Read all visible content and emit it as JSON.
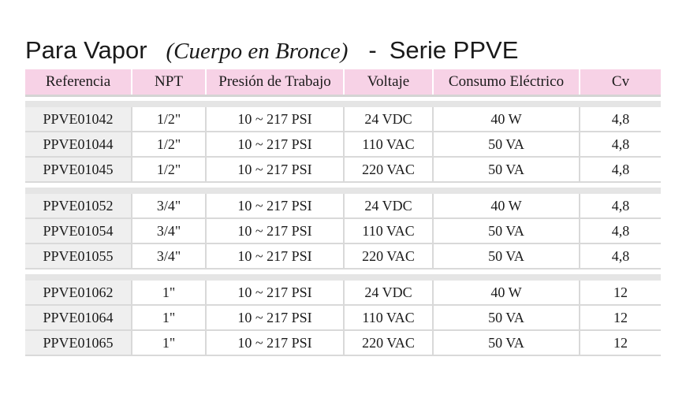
{
  "title": {
    "main": "Para Vapor",
    "sub": "(Cuerpo en Bronce)",
    "dash": "-",
    "series": "Serie PPVE"
  },
  "headers": {
    "referencia": "Referencia",
    "npt": "NPT",
    "presion": "Presión de Trabajo",
    "voltaje": "Voltaje",
    "consumo": "Consumo Eléctrico",
    "cv": "Cv"
  },
  "groups": [
    {
      "rows": [
        {
          "ref": "PPVE01042",
          "npt": "1/2\"",
          "presion": "10 ~ 217 PSI",
          "voltaje": "24 VDC",
          "consumo": "40 W",
          "cv": "4,8"
        },
        {
          "ref": "PPVE01044",
          "npt": "1/2\"",
          "presion": "10 ~ 217 PSI",
          "voltaje": "110 VAC",
          "consumo": "50 VA",
          "cv": "4,8"
        },
        {
          "ref": "PPVE01045",
          "npt": "1/2\"",
          "presion": "10 ~ 217 PSI",
          "voltaje": "220 VAC",
          "consumo": "50 VA",
          "cv": "4,8"
        }
      ]
    },
    {
      "rows": [
        {
          "ref": "PPVE01052",
          "npt": "3/4\"",
          "presion": "10 ~ 217 PSI",
          "voltaje": "24 VDC",
          "consumo": "40 W",
          "cv": "4,8"
        },
        {
          "ref": "PPVE01054",
          "npt": "3/4\"",
          "presion": "10 ~ 217 PSI",
          "voltaje": "110 VAC",
          "consumo": "50 VA",
          "cv": "4,8"
        },
        {
          "ref": "PPVE01055",
          "npt": "3/4\"",
          "presion": "10 ~ 217 PSI",
          "voltaje": "220 VAC",
          "consumo": "50 VA",
          "cv": "4,8"
        }
      ]
    },
    {
      "rows": [
        {
          "ref": "PPVE01062",
          "npt": "1\"",
          "presion": "10 ~ 217 PSI",
          "voltaje": "24 VDC",
          "consumo": "40 W",
          "cv": "12"
        },
        {
          "ref": "PPVE01064",
          "npt": "1\"",
          "presion": "10 ~ 217 PSI",
          "voltaje": "110 VAC",
          "consumo": "50 VA",
          "cv": "12"
        },
        {
          "ref": "PPVE01065",
          "npt": "1\"",
          "presion": "10 ~ 217 PSI",
          "voltaje": "220 VAC",
          "consumo": "50 VA",
          "cv": "12"
        }
      ]
    }
  ]
}
